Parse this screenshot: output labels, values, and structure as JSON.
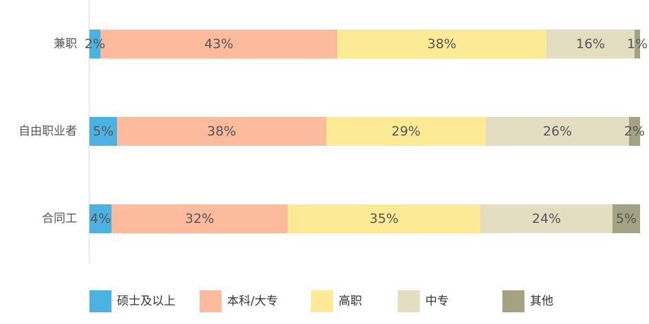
{
  "chart_data": {
    "type": "bar",
    "orientation": "horizontal",
    "stacked": true,
    "categories": [
      "兼职",
      "自由职业者",
      "合同工"
    ],
    "series": [
      {
        "name": "硕士及以上",
        "color": "#4BB3E2",
        "values": [
          2,
          5,
          4
        ],
        "labels": [
          "2%",
          "5%",
          "4%"
        ]
      },
      {
        "name": "本科/大专",
        "color": "#FBBB9C",
        "values": [
          43,
          38,
          32
        ],
        "labels": [
          "43%",
          "38%",
          "32%"
        ]
      },
      {
        "name": "高职",
        "color": "#FCEA95",
        "values": [
          38,
          29,
          35
        ],
        "labels": [
          "38%",
          "29%",
          "35%"
        ]
      },
      {
        "name": "中专",
        "color": "#E3DDC2",
        "values": [
          16,
          26,
          24
        ],
        "labels": [
          "16%",
          "26%",
          "24%"
        ]
      },
      {
        "name": "其他",
        "color": "#A3A283",
        "values": [
          1,
          2,
          5
        ],
        "labels": [
          "1%",
          "2%",
          "5%"
        ]
      }
    ],
    "xlim": [
      0,
      100
    ],
    "grid": false,
    "legend": "bottom"
  }
}
